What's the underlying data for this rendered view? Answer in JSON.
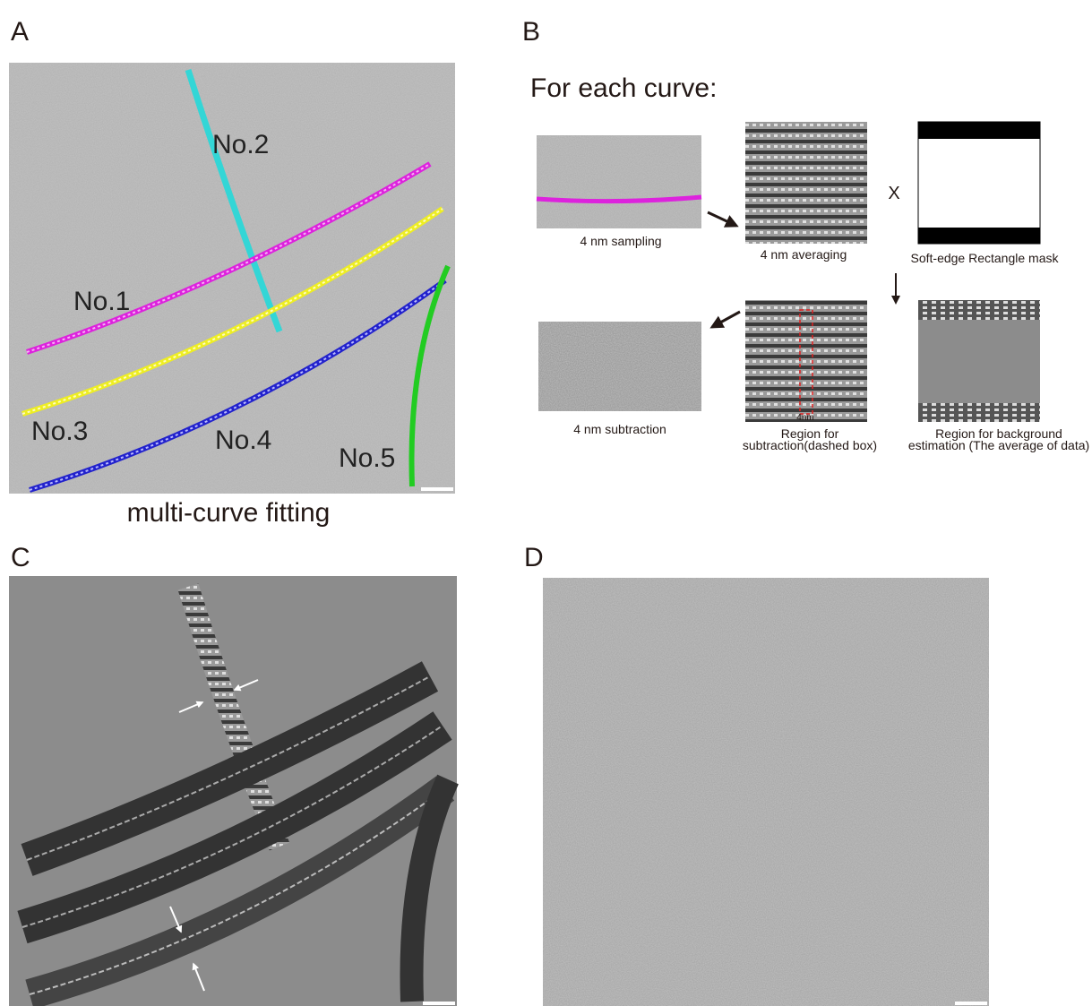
{
  "panels": [
    {
      "label": "A",
      "caption": "multi-curve fitting",
      "curves": [
        "No.1",
        "No.2",
        "No.3",
        "No.4",
        "No.5"
      ]
    },
    {
      "label": "B",
      "heading": "For each curve:",
      "operator": "X",
      "box_label": "4nm",
      "steps": [
        {
          "caption": [
            "4 nm sampling"
          ]
        },
        {
          "caption": [
            "4 nm averaging"
          ]
        },
        {
          "caption": [
            "Soft-edge Rectangle mask"
          ]
        },
        {
          "caption": [
            "4 nm subtraction"
          ]
        },
        {
          "caption": [
            "Region for",
            "subtraction(dashed box)"
          ]
        },
        {
          "caption": [
            "Region for background",
            "estimation (The average of data)"
          ]
        }
      ]
    },
    {
      "label": "C"
    },
    {
      "label": "D"
    }
  ]
}
